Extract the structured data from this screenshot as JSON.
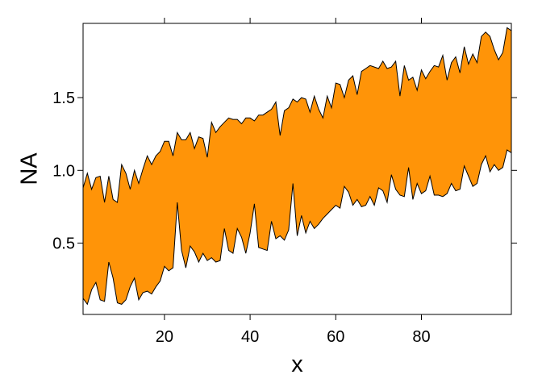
{
  "chart_data": {
    "type": "area",
    "title": "",
    "xlabel": "x",
    "ylabel": "NA",
    "xlim": [
      1,
      101
    ],
    "ylim": [
      0.01,
      2.01
    ],
    "x_ticks": [
      20,
      40,
      60,
      80
    ],
    "x_tick_labels": [
      "20",
      "40",
      "60",
      "80"
    ],
    "y_ticks": [
      0.5,
      1.0,
      1.5
    ],
    "y_tick_labels": [
      "0.5",
      "1.0",
      "1.5"
    ],
    "grid": false,
    "legend": "none",
    "fill_color": "#ff9408",
    "x": [
      1,
      2,
      3,
      4,
      5,
      6,
      7,
      8,
      9,
      10,
      11,
      12,
      13,
      14,
      15,
      16,
      17,
      18,
      19,
      20,
      21,
      22,
      23,
      24,
      25,
      26,
      27,
      28,
      29,
      30,
      31,
      32,
      33,
      34,
      35,
      36,
      37,
      38,
      39,
      40,
      41,
      42,
      43,
      44,
      45,
      46,
      47,
      48,
      49,
      50,
      51,
      52,
      53,
      54,
      55,
      56,
      57,
      58,
      59,
      60,
      61,
      62,
      63,
      64,
      65,
      66,
      67,
      68,
      69,
      70,
      71,
      72,
      73,
      74,
      75,
      76,
      77,
      78,
      79,
      80,
      81,
      82,
      83,
      84,
      85,
      86,
      87,
      88,
      89,
      90,
      91,
      92,
      93,
      94,
      95,
      96,
      97,
      98,
      99,
      100,
      101
    ],
    "series": [
      {
        "name": "",
        "upper": [
          0.88,
          0.98,
          0.87,
          0.95,
          0.96,
          0.78,
          0.96,
          0.8,
          0.78,
          1.04,
          0.98,
          0.87,
          1.0,
          0.91,
          1.01,
          1.1,
          1.04,
          1.1,
          1.13,
          1.2,
          1.2,
          1.1,
          1.26,
          1.21,
          1.21,
          1.26,
          1.15,
          1.23,
          1.22,
          1.09,
          1.33,
          1.26,
          1.3,
          1.33,
          1.36,
          1.35,
          1.35,
          1.32,
          1.36,
          1.36,
          1.34,
          1.38,
          1.38,
          1.4,
          1.42,
          1.47,
          1.24,
          1.41,
          1.43,
          1.49,
          1.47,
          1.5,
          1.49,
          1.4,
          1.51,
          1.42,
          1.36,
          1.51,
          1.43,
          1.6,
          1.59,
          1.5,
          1.62,
          1.65,
          1.52,
          1.68,
          1.7,
          1.72,
          1.71,
          1.7,
          1.75,
          1.7,
          1.71,
          1.75,
          1.51,
          1.72,
          1.62,
          1.64,
          1.55,
          1.69,
          1.63,
          1.68,
          1.72,
          1.71,
          1.79,
          1.62,
          1.74,
          1.78,
          1.67,
          1.85,
          1.73,
          1.8,
          1.74,
          1.92,
          1.95,
          1.92,
          1.83,
          1.76,
          1.81,
          1.98,
          1.96
        ]
      },
      {
        "name": "",
        "lower": [
          0.12,
          0.08,
          0.18,
          0.23,
          0.11,
          0.1,
          0.37,
          0.26,
          0.09,
          0.08,
          0.11,
          0.2,
          0.26,
          0.11,
          0.16,
          0.17,
          0.15,
          0.2,
          0.24,
          0.34,
          0.31,
          0.33,
          0.78,
          0.45,
          0.33,
          0.48,
          0.44,
          0.37,
          0.43,
          0.38,
          0.4,
          0.37,
          0.38,
          0.6,
          0.45,
          0.43,
          0.6,
          0.54,
          0.43,
          0.57,
          0.77,
          0.47,
          0.46,
          0.45,
          0.65,
          0.53,
          0.55,
          0.52,
          0.59,
          0.91,
          0.55,
          0.69,
          0.57,
          0.65,
          0.6,
          0.63,
          0.67,
          0.7,
          0.73,
          0.76,
          0.74,
          0.89,
          0.85,
          0.76,
          0.8,
          0.75,
          0.76,
          0.82,
          0.76,
          0.88,
          0.86,
          0.78,
          0.97,
          0.87,
          0.83,
          0.82,
          1.02,
          0.8,
          0.91,
          0.84,
          0.86,
          0.96,
          0.83,
          0.83,
          0.82,
          0.84,
          0.91,
          0.86,
          0.87,
          1.03,
          0.96,
          0.89,
          0.91,
          1.04,
          1.1,
          0.99,
          1.04,
          1.0,
          1.02,
          1.14,
          1.12
        ]
      }
    ]
  }
}
